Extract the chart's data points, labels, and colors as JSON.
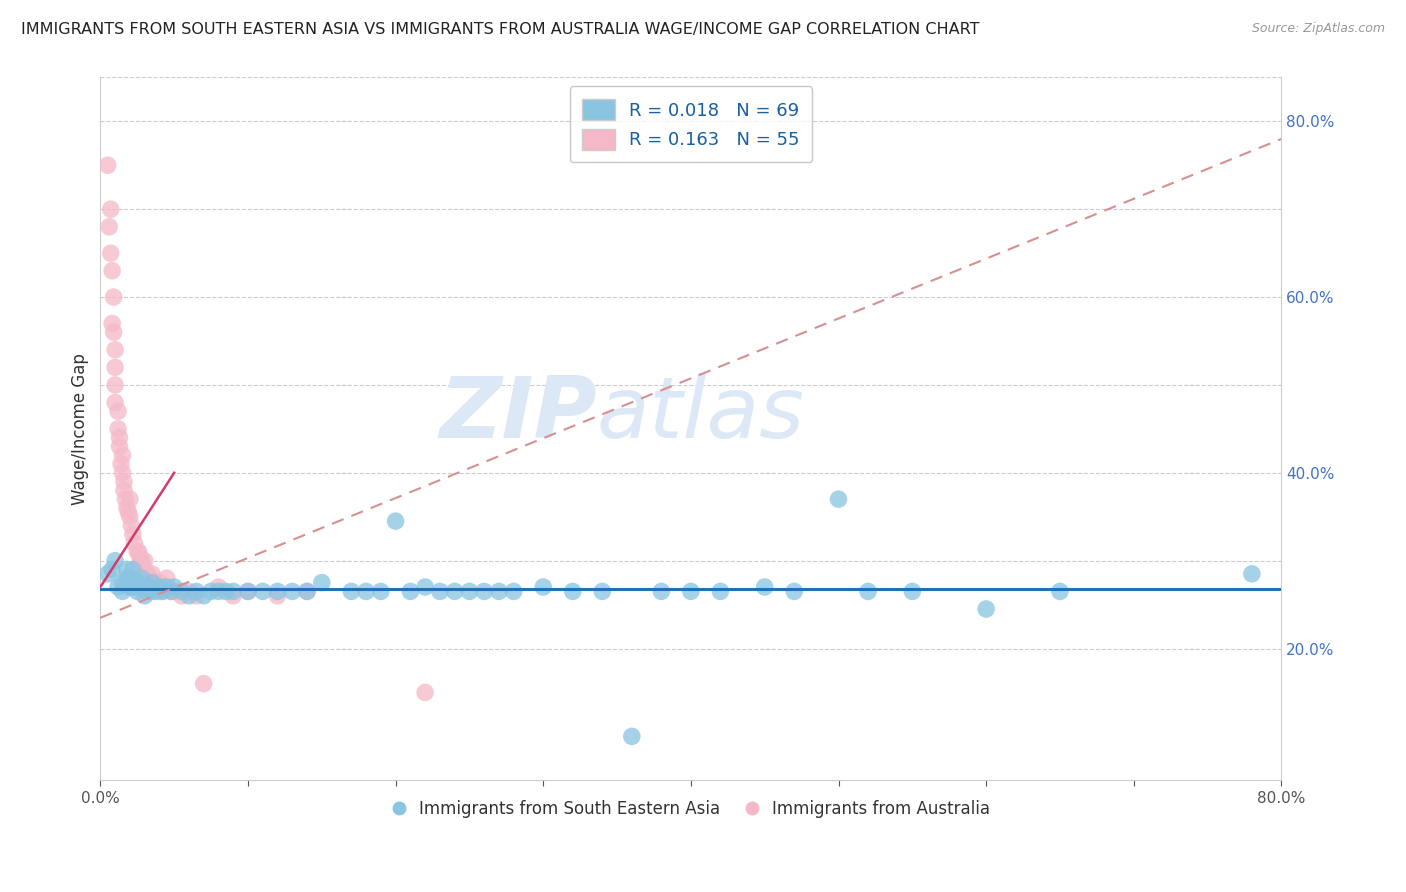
{
  "title": "IMMIGRANTS FROM SOUTH EASTERN ASIA VS IMMIGRANTS FROM AUSTRALIA WAGE/INCOME GAP CORRELATION CHART",
  "source": "Source: ZipAtlas.com",
  "ylabel": "Wage/Income Gap",
  "xlim": [
    0.0,
    0.8
  ],
  "ylim": [
    0.05,
    0.85
  ],
  "blue_R": 0.018,
  "blue_N": 69,
  "pink_R": 0.163,
  "pink_N": 55,
  "blue_color": "#89c4e1",
  "pink_color": "#f5b8c8",
  "blue_trend_color": "#2171b5",
  "pink_trend_color": "#d63a6a",
  "pink_dash_color": "#d69090",
  "watermark_zip": "ZIP",
  "watermark_atlas": "atlas",
  "watermark_color": "#dce8f5",
  "legend_label_blue": "Immigrants from South Eastern Asia",
  "legend_label_pink": "Immigrants from Australia",
  "blue_x": [
    0.005,
    0.008,
    0.01,
    0.012,
    0.015,
    0.015,
    0.018,
    0.018,
    0.02,
    0.02,
    0.022,
    0.022,
    0.025,
    0.025,
    0.027,
    0.028,
    0.03,
    0.03,
    0.032,
    0.033,
    0.035,
    0.035,
    0.038,
    0.04,
    0.042,
    0.045,
    0.048,
    0.05,
    0.055,
    0.06,
    0.065,
    0.07,
    0.075,
    0.08,
    0.085,
    0.09,
    0.1,
    0.11,
    0.12,
    0.13,
    0.14,
    0.15,
    0.17,
    0.18,
    0.19,
    0.2,
    0.21,
    0.22,
    0.23,
    0.24,
    0.25,
    0.26,
    0.27,
    0.28,
    0.3,
    0.32,
    0.34,
    0.36,
    0.38,
    0.4,
    0.42,
    0.45,
    0.47,
    0.5,
    0.52,
    0.55,
    0.6,
    0.65,
    0.78
  ],
  "blue_y": [
    0.285,
    0.29,
    0.3,
    0.27,
    0.265,
    0.275,
    0.28,
    0.29,
    0.27,
    0.28,
    0.27,
    0.29,
    0.265,
    0.275,
    0.27,
    0.28,
    0.26,
    0.27,
    0.265,
    0.27,
    0.265,
    0.275,
    0.265,
    0.27,
    0.265,
    0.27,
    0.265,
    0.27,
    0.265,
    0.26,
    0.265,
    0.26,
    0.265,
    0.265,
    0.265,
    0.265,
    0.265,
    0.265,
    0.265,
    0.265,
    0.265,
    0.275,
    0.265,
    0.265,
    0.265,
    0.345,
    0.265,
    0.27,
    0.265,
    0.265,
    0.265,
    0.265,
    0.265,
    0.265,
    0.27,
    0.265,
    0.265,
    0.1,
    0.265,
    0.265,
    0.265,
    0.27,
    0.265,
    0.37,
    0.265,
    0.265,
    0.245,
    0.265,
    0.285
  ],
  "pink_x": [
    0.005,
    0.006,
    0.007,
    0.007,
    0.008,
    0.008,
    0.009,
    0.009,
    0.01,
    0.01,
    0.01,
    0.01,
    0.012,
    0.012,
    0.013,
    0.013,
    0.014,
    0.015,
    0.015,
    0.016,
    0.016,
    0.017,
    0.018,
    0.019,
    0.02,
    0.02,
    0.021,
    0.022,
    0.023,
    0.025,
    0.026,
    0.027,
    0.028,
    0.03,
    0.03,
    0.032,
    0.034,
    0.035,
    0.037,
    0.038,
    0.04,
    0.042,
    0.045,
    0.048,
    0.05,
    0.055,
    0.06,
    0.065,
    0.07,
    0.08,
    0.09,
    0.1,
    0.12,
    0.14,
    0.22
  ],
  "pink_y": [
    0.75,
    0.68,
    0.7,
    0.65,
    0.63,
    0.57,
    0.6,
    0.56,
    0.54,
    0.52,
    0.5,
    0.48,
    0.47,
    0.45,
    0.44,
    0.43,
    0.41,
    0.42,
    0.4,
    0.39,
    0.38,
    0.37,
    0.36,
    0.355,
    0.35,
    0.37,
    0.34,
    0.33,
    0.32,
    0.31,
    0.31,
    0.3,
    0.3,
    0.29,
    0.3,
    0.285,
    0.28,
    0.285,
    0.275,
    0.27,
    0.275,
    0.265,
    0.28,
    0.265,
    0.265,
    0.26,
    0.265,
    0.26,
    0.16,
    0.27,
    0.26,
    0.265,
    0.26,
    0.265,
    0.15
  ],
  "pink_trend_x0": 0.0,
  "pink_trend_y0": 0.235,
  "pink_trend_x1": 0.8,
  "pink_trend_y1": 0.78,
  "blue_trend_y": 0.268
}
